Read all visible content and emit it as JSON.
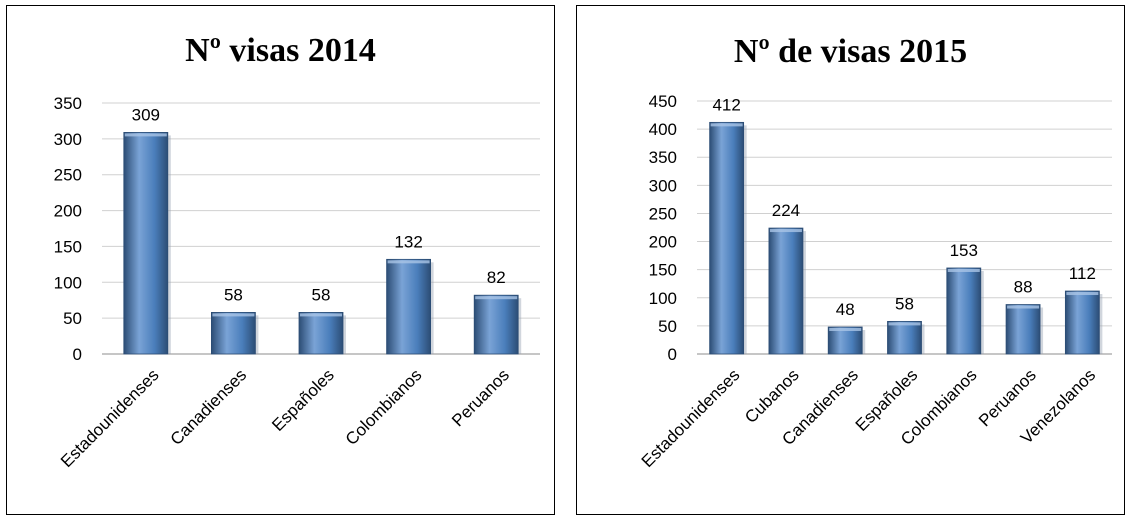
{
  "colors": {
    "bar_fill": "#4a7ebb",
    "bar_dark": "#2c4d75",
    "bar_light": "#7aa3d6",
    "gridline": "#d0d0d0"
  },
  "chart_data": [
    {
      "type": "bar",
      "title": "Nº visas 2014",
      "categories": [
        "Estadounidenses",
        "Canadienses",
        "Españoles",
        "Colombianos",
        "Peruanos"
      ],
      "values": [
        309,
        58,
        58,
        132,
        82
      ],
      "data_labels": [
        "309",
        "58",
        "58",
        "132",
        "82"
      ],
      "yticks": [
        "0",
        "50",
        "100",
        "150",
        "200",
        "250",
        "300",
        "350"
      ],
      "ylim": [
        0,
        350
      ],
      "grid": true,
      "legend": "none"
    },
    {
      "type": "bar",
      "title": "Nº de visas 2015",
      "categories": [
        "Estadounidenses",
        "Cubanos",
        "Canadienses",
        "Españoles",
        "Colombianos",
        "Peruanos",
        "Venezolanos"
      ],
      "values": [
        412,
        224,
        48,
        58,
        153,
        88,
        112
      ],
      "data_labels": [
        "412",
        "224",
        "48",
        "58",
        "153",
        "88",
        "112"
      ],
      "yticks": [
        "0",
        "50",
        "100",
        "150",
        "200",
        "250",
        "300",
        "350",
        "400",
        "450"
      ],
      "ylim": [
        0,
        450
      ],
      "grid": true,
      "legend": "none"
    }
  ]
}
